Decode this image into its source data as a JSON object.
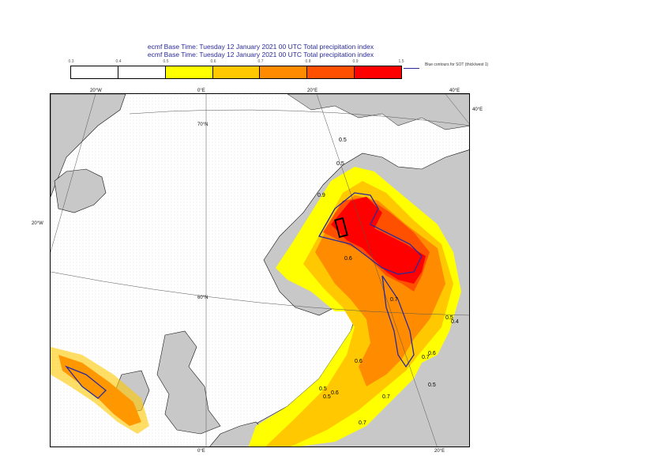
{
  "titles": {
    "line1": "ecmf  Base Time: Tuesday 12 January 2021 00 UTC Total precipitation index",
    "line2": "ecmf  Base Time: Tuesday 12 January 2021 00 UTC Total precipitation index"
  },
  "colorbar": {
    "ticks": [
      "0.3",
      "0.4",
      "0.5",
      "0.6",
      "0.7",
      "0.8",
      "0.9",
      "1.5"
    ],
    "colors": [
      "#ffffff",
      "#ffffff",
      "#ffff00",
      "#ffc800",
      "#ff8c00",
      "#ff5000",
      "#ff0000"
    ]
  },
  "legend_note": "Blue contours for SOT (thick/west 1)",
  "map_labels": {
    "lon_20w_top": "20°W",
    "lon_0e_top": "0°E",
    "lon_20e_top": "20°E",
    "lon_40e_top": "40°E",
    "lon_40e_right": "40°E",
    "lon_20w_left": "20°W",
    "lat_70n": "70°N",
    "lat_60n": "60°N",
    "lon_0e_bottom": "0°E",
    "lon_20e_bottom": "20°E"
  },
  "contour_labels": [
    "0.5",
    "0.6",
    "0.7",
    "0.5",
    "0.6",
    "0.7",
    "0.5",
    "0.6",
    "0.4",
    "0.5",
    "0.7",
    "0.9",
    "0.5",
    "0.6",
    "0.7",
    "0.5"
  ],
  "colors": {
    "land": "#c8c8c8",
    "sea": "#ffffff",
    "sot_contour": "#2a2a9c",
    "title": "#2b2b9a"
  }
}
